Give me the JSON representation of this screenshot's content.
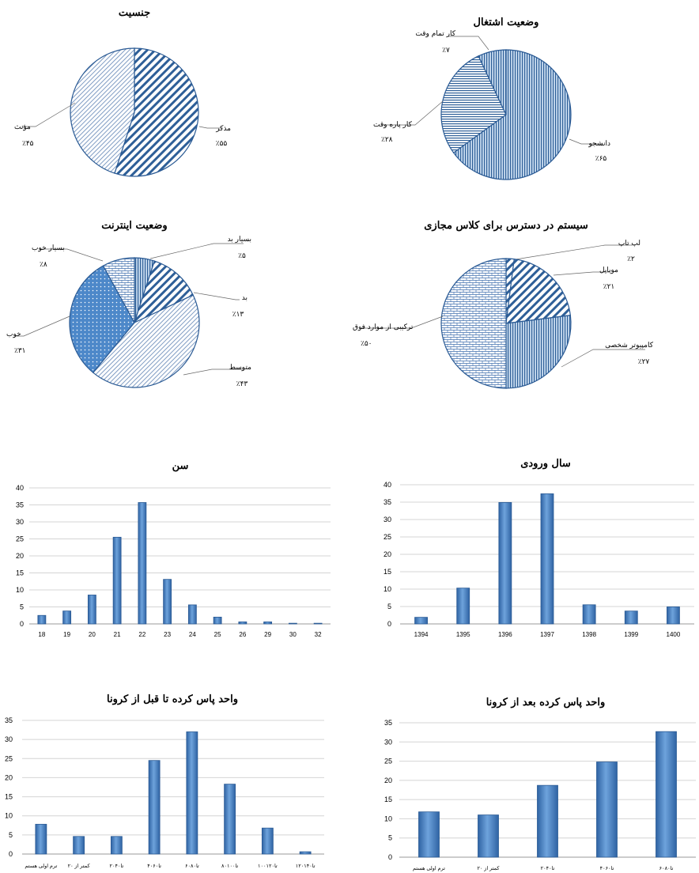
{
  "colors": {
    "accent": "#3f7cc4",
    "light": "#dbe7f5",
    "bar_edge": "#2a5a94",
    "grid": "#d0d0d0"
  },
  "chart_data": [
    {
      "id": "gender",
      "type": "pie",
      "title": "جنسیت",
      "slices": [
        {
          "label": "مذکر",
          "value_label": "٪۵۵",
          "value": 55,
          "pattern": "diagonal"
        },
        {
          "label": "مؤنث",
          "value_label": "٪۴۵",
          "value": 45,
          "pattern": "diagonal-light"
        }
      ]
    },
    {
      "id": "employment",
      "type": "pie",
      "title": "وضعیت اشتغال",
      "slices": [
        {
          "label": "دانشجو",
          "value_label": "٪۶۵",
          "value": 65,
          "pattern": "vertical"
        },
        {
          "label": "کار پاره وقت",
          "value_label": "٪۲۸",
          "value": 28,
          "pattern": "horizontal"
        },
        {
          "label": "کار تمام وقت",
          "value_label": "٪۷",
          "value": 7,
          "pattern": "vertical"
        }
      ]
    },
    {
      "id": "internet",
      "type": "pie",
      "title": "وضعیت اینترنت",
      "slices": [
        {
          "label": "بسیار بد",
          "value_label": "٪۵",
          "value": 5,
          "pattern": "vertical"
        },
        {
          "label": "بد",
          "value_label": "٪۱۳",
          "value": 13,
          "pattern": "diagonal"
        },
        {
          "label": "متوسط",
          "value_label": "٪۴۳",
          "value": 43,
          "pattern": "diagonal-light"
        },
        {
          "label": "خوب",
          "value_label": "٪۳۱",
          "value": 31,
          "pattern": "dots"
        },
        {
          "label": "بسیار خوب",
          "value_label": "٪۸",
          "value": 8,
          "pattern": "brick"
        }
      ]
    },
    {
      "id": "system",
      "type": "pie",
      "title": "سیستم در دسترس برای کلاس مجازی",
      "slices": [
        {
          "label": "لپ تاپ",
          "value_label": "٪۲",
          "value": 2,
          "pattern": "diagonal"
        },
        {
          "label": "موبایل",
          "value_label": "٪۲۱",
          "value": 21,
          "pattern": "diagonal"
        },
        {
          "label": "کامپیوتر شخصی",
          "value_label": "٪۲۷",
          "value": 27,
          "pattern": "vertical"
        },
        {
          "label": "ترکیبی از موارد فوق",
          "value_label": "٪۵۰",
          "value": 50,
          "pattern": "brick"
        }
      ]
    },
    {
      "id": "age",
      "type": "bar",
      "title": "سن",
      "categories": [
        "18",
        "19",
        "20",
        "21",
        "22",
        "23",
        "24",
        "25",
        "26",
        "29",
        "30",
        "32"
      ],
      "values": [
        2.5,
        3.8,
        8.5,
        25.5,
        35.7,
        13.1,
        5.6,
        2.0,
        0.6,
        0.6,
        0.2,
        0.2
      ],
      "ylim": [
        0,
        40
      ],
      "yticks": [
        "0",
        "5",
        "10",
        "15",
        "20",
        "25",
        "30",
        "35",
        "40"
      ],
      "grid": true
    },
    {
      "id": "entry_year",
      "type": "bar",
      "title": "سال ورودی",
      "categories": [
        "1394",
        "1395",
        "1396",
        "1397",
        "1398",
        "1399",
        "1400"
      ],
      "values": [
        1.9,
        10.3,
        34.9,
        37.4,
        5.5,
        3.7,
        4.9
      ],
      "ylim": [
        0,
        40
      ],
      "yticks": [
        "0",
        "5",
        "10",
        "15",
        "20",
        "25",
        "30",
        "35",
        "40"
      ],
      "grid": true
    },
    {
      "id": "units_before",
      "type": "bar",
      "title": "واحد پاس کرده تا قبل از کرونا",
      "categories": [
        "ترم اولی هستم",
        "کمتر از ۲۰",
        "۲۰تا۴۰",
        "۴۰تا۶۰",
        "۶۰تا۸۰",
        "۸۰تا۱۰۰",
        "۱۰۰تا۱۲۰",
        "۱۲۰تا۱۴۰"
      ],
      "values": [
        7.8,
        4.6,
        4.6,
        24.5,
        32.0,
        18.3,
        6.8,
        0.6
      ],
      "ylim": [
        0,
        35
      ],
      "yticks": [
        "0",
        "5",
        "10",
        "15",
        "20",
        "25",
        "30",
        "35"
      ],
      "grid": true
    },
    {
      "id": "units_after",
      "type": "bar",
      "title": "واحد پاس کرده بعد از کرونا",
      "categories": [
        "ترم اولی هستم",
        "کمتر از ۲۰",
        "۲۰تا۴۰",
        "۴۰تا۶۰",
        "۶۰تا۸۰"
      ],
      "values": [
        11.8,
        11.0,
        18.7,
        24.8,
        32.7
      ],
      "ylim": [
        0,
        35
      ],
      "yticks": [
        "0",
        "5",
        "10",
        "15",
        "20",
        "25",
        "30",
        "35"
      ],
      "grid": true
    }
  ]
}
